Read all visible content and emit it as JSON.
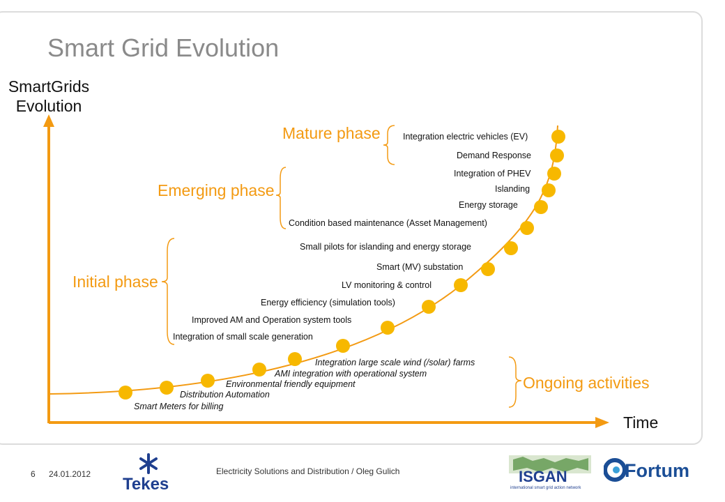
{
  "slide": {
    "title": "Smart Grid Evolution",
    "page_number": "6",
    "date": "24.01.2012",
    "footer_text": "Electricity Solutions and Distribution / Oleg Gulich"
  },
  "axes": {
    "y_label": "SmartGrids\nEvolution",
    "x_label": "Time"
  },
  "phases": {
    "mature": "Mature phase",
    "emerging": "Emerging phase",
    "initial": "Initial phase",
    "ongoing": "Ongoing activities"
  },
  "mature_items": [
    "Integration electric vehicles (EV)",
    "Demand Response",
    "Integration of PHEV",
    "Islanding",
    "Energy storage"
  ],
  "emerging_items": [
    "Condition based maintenance (Asset Management)",
    "Small pilots for islanding and energy storage"
  ],
  "initial_items": [
    "Smart (MV) substation",
    "LV monitoring & control",
    "Energy efficiency (simulation tools)",
    "Improved AM and Operation system tools",
    "Integration of small scale generation"
  ],
  "ongoing_items": [
    "Integration large scale wind (/solar) farms",
    "AMI integration with operational system",
    "Environmental friendly equipment",
    "Distribution Automation",
    "Smart Meters for billing"
  ],
  "logos": {
    "tekes": "Tekes",
    "isgan": "ISGAN",
    "isgan_sub": "international smart grid action network",
    "fortum": "Fortum"
  },
  "colors": {
    "accent": "#f39a12",
    "dot": "#f7b800",
    "title": "#8a8a8a",
    "tekes_blue": "#1f3f8f",
    "fortum_blue": "#1b4e96"
  }
}
